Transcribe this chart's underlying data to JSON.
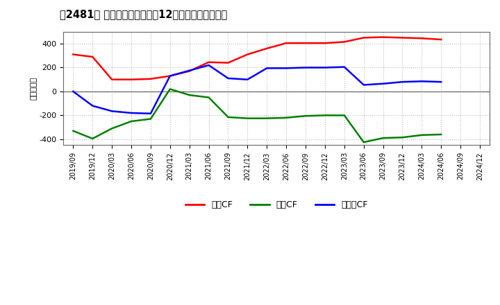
{
  "title": "、2481〕 キャッシュフローの12か月移動合計の推移",
  "ylabel": "（百万円）",
  "background_color": "#ffffff",
  "plot_background": "#ffffff",
  "grid_color": "#bbbbbb",
  "x_labels": [
    "2019/09",
    "2019/12",
    "2020/03",
    "2020/06",
    "2020/09",
    "2020/12",
    "2021/03",
    "2021/06",
    "2021/09",
    "2021/12",
    "2022/03",
    "2022/06",
    "2022/09",
    "2022/12",
    "2023/03",
    "2023/06",
    "2023/09",
    "2023/12",
    "2024/03",
    "2024/06",
    "2024/09",
    "2024/12"
  ],
  "operating_cf": [
    310,
    290,
    100,
    100,
    105,
    130,
    170,
    245,
    240,
    310,
    360,
    405,
    405,
    405,
    415,
    450,
    455,
    450,
    445,
    435,
    null,
    null
  ],
  "investing_cf": [
    -330,
    -395,
    -310,
    -250,
    -230,
    20,
    -30,
    -50,
    -215,
    -225,
    -225,
    -220,
    -205,
    -200,
    -200,
    -425,
    -390,
    -385,
    -365,
    -360,
    null,
    null
  ],
  "free_cf": [
    0,
    -120,
    -165,
    -180,
    -185,
    130,
    175,
    220,
    110,
    100,
    195,
    195,
    200,
    200,
    205,
    55,
    65,
    80,
    85,
    80,
    null,
    null
  ],
  "operating_color": "#ff0000",
  "investing_color": "#008000",
  "free_color": "#0000ff",
  "ylim": [
    -450,
    500
  ],
  "yticks": [
    -400,
    -200,
    0,
    200,
    400
  ],
  "legend_labels": [
    "営業CF",
    "投資CF",
    "フリーCF"
  ]
}
